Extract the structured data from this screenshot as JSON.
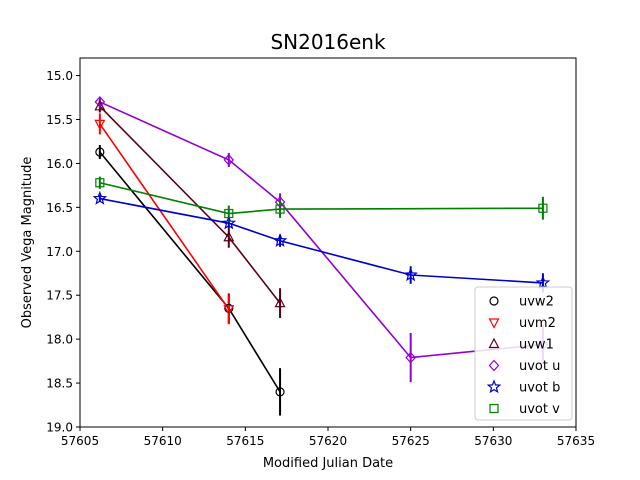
{
  "chart_data": {
    "type": "scatter",
    "title": "SN2016enk",
    "xlabel": "Modified Julian Date",
    "ylabel": "Observed Vega Magnitude",
    "xlim": [
      57605,
      57635
    ],
    "ylim": [
      19.0,
      14.8
    ],
    "y_inverted": true,
    "xticks": [
      57605,
      57610,
      57615,
      57620,
      57625,
      57630,
      57635
    ],
    "yticks": [
      15.0,
      15.5,
      16.0,
      16.5,
      17.0,
      17.5,
      18.0,
      18.5,
      19.0
    ],
    "grid": false,
    "legend_position": "lower-right",
    "series": [
      {
        "name": "uvw2",
        "marker": "circle",
        "color": "#000000",
        "points": [
          {
            "x": 57606.2,
            "y": 15.87,
            "err": 0.08
          },
          {
            "x": 57614.0,
            "y": 17.65,
            "err": 0.17
          },
          {
            "x": 57617.1,
            "y": 18.6,
            "err": 0.27
          }
        ]
      },
      {
        "name": "uvm2",
        "marker": "triangle-down",
        "color": "#ff0000",
        "points": [
          {
            "x": 57606.2,
            "y": 15.55,
            "err": 0.12
          },
          {
            "x": 57614.0,
            "y": 17.66,
            "err": 0.17
          }
        ]
      },
      {
        "name": "uvw1",
        "marker": "triangle-up",
        "color": "#5a0016",
        "points": [
          {
            "x": 57606.2,
            "y": 15.35,
            "err": 0.07
          },
          {
            "x": 57614.0,
            "y": 16.84,
            "err": 0.12
          },
          {
            "x": 57617.1,
            "y": 17.59,
            "err": 0.17
          }
        ]
      },
      {
        "name": "uvot u",
        "marker": "diamond",
        "color": "#9400d3",
        "points": [
          {
            "x": 57606.2,
            "y": 15.3,
            "err": 0.05
          },
          {
            "x": 57614.0,
            "y": 15.96,
            "err": 0.08
          },
          {
            "x": 57617.1,
            "y": 16.44,
            "err": 0.1
          },
          {
            "x": 57625.0,
            "y": 18.21,
            "err": 0.28
          },
          {
            "x": 57633.0,
            "y": 18.06,
            "err": 0.22
          }
        ]
      },
      {
        "name": "uvot b",
        "marker": "star",
        "color": "#0000cd",
        "points": [
          {
            "x": 57606.2,
            "y": 16.4,
            "err": 0.04
          },
          {
            "x": 57614.0,
            "y": 16.68,
            "err": 0.05
          },
          {
            "x": 57617.1,
            "y": 16.88,
            "err": 0.07
          },
          {
            "x": 57625.0,
            "y": 17.27,
            "err": 0.1
          },
          {
            "x": 57633.0,
            "y": 17.36,
            "err": 0.11
          }
        ]
      },
      {
        "name": "uvot v",
        "marker": "square",
        "color": "#008000",
        "points": [
          {
            "x": 57606.2,
            "y": 16.22,
            "err": 0.07
          },
          {
            "x": 57614.0,
            "y": 16.57,
            "err": 0.09
          },
          {
            "x": 57617.1,
            "y": 16.52,
            "err": 0.1
          },
          {
            "x": 57633.0,
            "y": 16.51,
            "err": 0.13
          }
        ]
      }
    ]
  }
}
